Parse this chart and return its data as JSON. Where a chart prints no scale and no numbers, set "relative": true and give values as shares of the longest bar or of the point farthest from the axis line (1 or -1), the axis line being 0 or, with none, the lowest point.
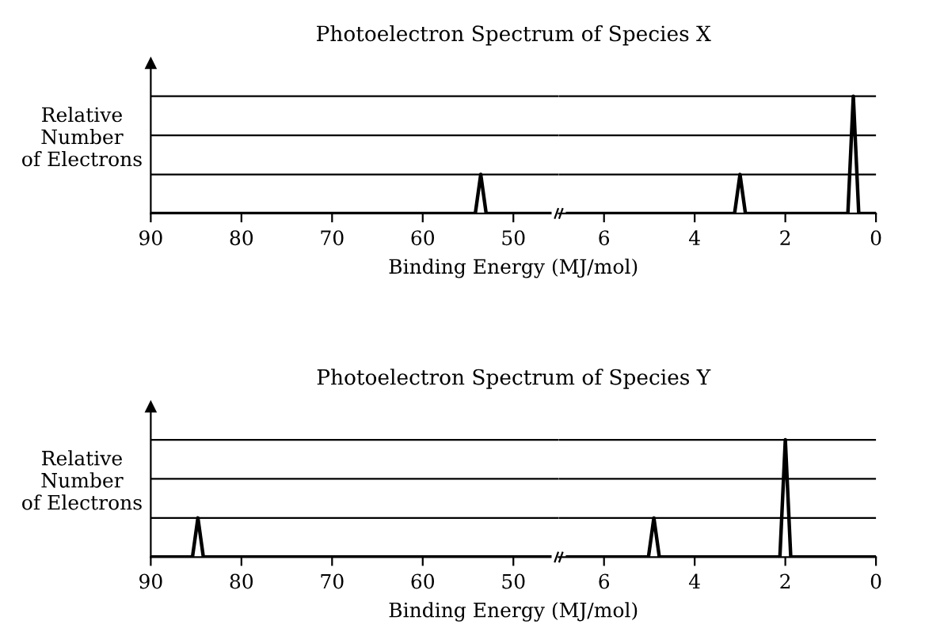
{
  "chart_data": [
    {
      "type": "line",
      "title": "Photoelectron Spectrum of Species X",
      "xlabel": "Binding Energy (MJ/mol)",
      "ylabel": "Relative\nNumber\nof Electrons",
      "relative": true,
      "tick_labels": "x",
      "xlim": [
        90,
        45
      ],
      "xticks": [
        90,
        80,
        70,
        60,
        50
      ],
      "series": [
        {
          "color": "#000000",
          "x": [
            90,
            54.2,
            53.6,
            53.0,
            45
          ],
          "values": [
            0,
            0,
            1,
            0,
            0
          ]
        }
      ],
      "ref_lines": [
        {
          "axis": "y",
          "value": 1,
          "color": "#000000"
        },
        {
          "axis": "y",
          "value": 2,
          "color": "#000000"
        },
        {
          "axis": "y",
          "value": 3,
          "color": "#000000"
        }
      ]
    },
    {
      "type": "line",
      "relative": true,
      "tick_labels": "x",
      "xlim": [
        7,
        0
      ],
      "xticks": [
        6,
        4,
        2,
        0
      ],
      "series": [
        {
          "color": "#000000",
          "x": [
            7,
            3.12,
            3.0,
            2.88,
            0.62,
            0.5,
            0.38,
            0
          ],
          "values": [
            0,
            0,
            0.333,
            0,
            0,
            1,
            0,
            0
          ]
        }
      ],
      "ref_lines": [
        {
          "axis": "y",
          "value": 0.333,
          "color": "#000000"
        },
        {
          "axis": "y",
          "value": 0.667,
          "color": "#000000"
        },
        {
          "axis": "y",
          "value": 1,
          "color": "#000000"
        }
      ]
    },
    {
      "type": "line",
      "title": "Photoelectron Spectrum of Species Y",
      "xlabel": "Binding Energy (MJ/mol)",
      "ylabel": "Relative\nNumber\nof Electrons",
      "relative": true,
      "tick_labels": "x",
      "xlim": [
        90,
        45
      ],
      "xticks": [
        90,
        80,
        70,
        60,
        50
      ],
      "series": [
        {
          "color": "#000000",
          "x": [
            90,
            85.4,
            84.8,
            84.2,
            45
          ],
          "values": [
            0,
            0,
            1,
            0,
            0
          ]
        }
      ],
      "ref_lines": [
        {
          "axis": "y",
          "value": 1,
          "color": "#000000"
        },
        {
          "axis": "y",
          "value": 2,
          "color": "#000000"
        },
        {
          "axis": "y",
          "value": 3,
          "color": "#000000"
        }
      ]
    },
    {
      "type": "line",
      "relative": true,
      "tick_labels": "x",
      "xlim": [
        7,
        0
      ],
      "xticks": [
        6,
        4,
        2,
        0
      ],
      "series": [
        {
          "color": "#000000",
          "x": [
            7,
            5.02,
            4.9,
            4.78,
            2.12,
            2.0,
            1.88,
            0
          ],
          "values": [
            0,
            0,
            0.333,
            0,
            0,
            1,
            0,
            0
          ]
        }
      ],
      "ref_lines": [
        {
          "axis": "y",
          "value": 0.333,
          "color": "#000000"
        },
        {
          "axis": "y",
          "value": 0.667,
          "color": "#000000"
        },
        {
          "axis": "y",
          "value": 1,
          "color": "#000000"
        }
      ]
    }
  ]
}
